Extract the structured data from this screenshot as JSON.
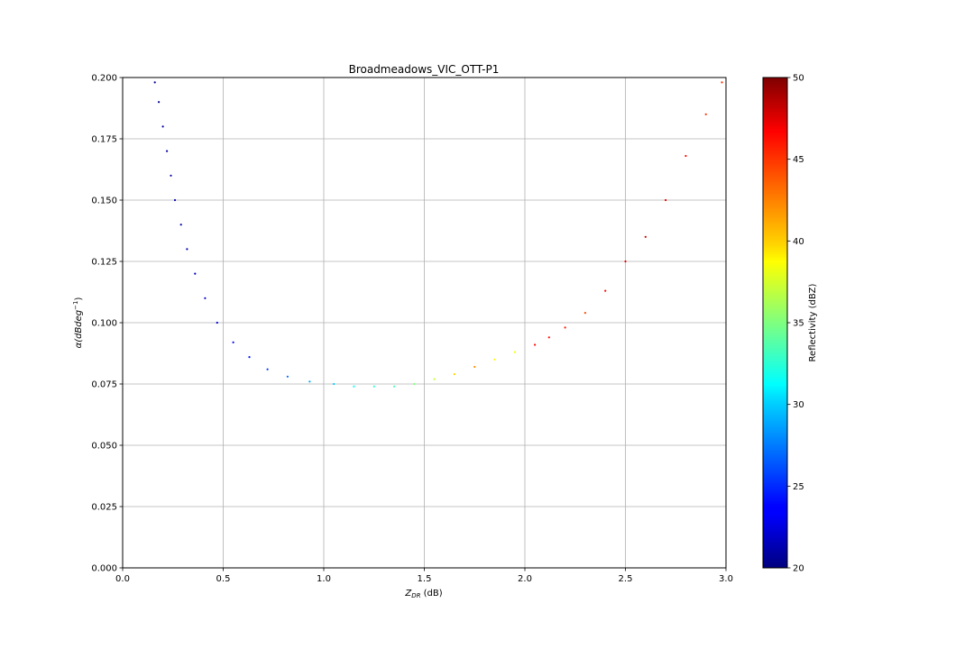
{
  "chart_data": {
    "type": "scatter",
    "title": "Broadmeadows_VIC_OTT-P1",
    "xlabel": {
      "main": "Z",
      "sub": "DR",
      "tail": " (dB)"
    },
    "ylabel": {
      "main": "α(dBdeg",
      "sup": "−1",
      "tail": ")"
    },
    "xlim": [
      0,
      3.0
    ],
    "ylim": [
      0,
      0.2
    ],
    "xticks": [
      "0.0",
      "0.5",
      "1.0",
      "1.5",
      "2.0",
      "2.5",
      "3.0"
    ],
    "yticks": [
      "0.000",
      "0.025",
      "0.050",
      "0.075",
      "0.100",
      "0.125",
      "0.150",
      "0.175",
      "0.200"
    ],
    "grid": true,
    "colormap": "jet",
    "colorbar": {
      "label": "Reflectivity (dBZ)",
      "range": [
        20,
        50
      ],
      "ticks": [
        "20",
        "25",
        "30",
        "35",
        "40",
        "45",
        "50"
      ]
    },
    "series": [
      {
        "description_points": "x = ZDR (dB), y = alpha, z = reflectivity (dBZ)",
        "points": [
          [
            0.16,
            0.198,
            20.5
          ],
          [
            0.18,
            0.19,
            20.5
          ],
          [
            0.2,
            0.18,
            20.8
          ],
          [
            0.22,
            0.17,
            21
          ],
          [
            0.24,
            0.16,
            21
          ],
          [
            0.26,
            0.15,
            21.2
          ],
          [
            0.29,
            0.14,
            21.3
          ],
          [
            0.32,
            0.13,
            21.5
          ],
          [
            0.36,
            0.12,
            21.8
          ],
          [
            0.41,
            0.11,
            22
          ],
          [
            0.47,
            0.1,
            22.5
          ],
          [
            0.55,
            0.092,
            23.5
          ],
          [
            0.63,
            0.086,
            24.5
          ],
          [
            0.72,
            0.081,
            25.5
          ],
          [
            0.82,
            0.078,
            27
          ],
          [
            0.93,
            0.076,
            28.5
          ],
          [
            1.05,
            0.075,
            30
          ],
          [
            1.15,
            0.074,
            31.5
          ],
          [
            1.25,
            0.074,
            32.5
          ],
          [
            1.35,
            0.074,
            33.5
          ],
          [
            1.45,
            0.075,
            35
          ],
          [
            1.55,
            0.077,
            37
          ],
          [
            1.65,
            0.079,
            40
          ],
          [
            1.75,
            0.082,
            42
          ],
          [
            1.85,
            0.085,
            39
          ],
          [
            1.95,
            0.088,
            38.5
          ],
          [
            2.05,
            0.091,
            46
          ],
          [
            2.12,
            0.094,
            46
          ],
          [
            2.2,
            0.098,
            45.5
          ],
          [
            2.3,
            0.104,
            44
          ],
          [
            2.4,
            0.113,
            46
          ],
          [
            2.5,
            0.125,
            47
          ],
          [
            2.6,
            0.135,
            48
          ],
          [
            2.7,
            0.15,
            47
          ],
          [
            2.8,
            0.168,
            46
          ],
          [
            2.9,
            0.185,
            45
          ],
          [
            2.98,
            0.198,
            45
          ]
        ]
      }
    ]
  }
}
